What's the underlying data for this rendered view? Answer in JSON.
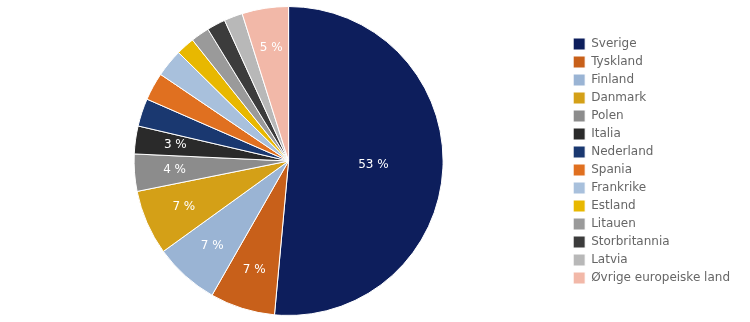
{
  "chart_data": {
    "type": "pie",
    "categories": [
      "Sverige",
      "Tyskland",
      "Finland",
      "Danmark",
      "Polen",
      "Italia",
      "Nederland",
      "Spania",
      "Frankrike",
      "Estland",
      "Litauen",
      "Storbritannia",
      "Latvia",
      "Øvrige europeiske land"
    ],
    "values": [
      53,
      7,
      7,
      7,
      4,
      3,
      3,
      3,
      3,
      2,
      2,
      2,
      2,
      5
    ],
    "value_labels": [
      "53 %",
      "7 %",
      "7 %",
      "7 %",
      "4 %",
      "3 %",
      null,
      null,
      null,
      null,
      null,
      null,
      null,
      "5 %"
    ],
    "data_labels": true,
    "colors": [
      "#0d1e5c",
      "#c8601a",
      "#9ab4d4",
      "#d4a017",
      "#8c8c8c",
      "#2a2a2a",
      "#1a3870",
      "#e07020",
      "#a8c0dc",
      "#e8b800",
      "#9a9a9a",
      "#3c3c3c",
      "#b8b8b8",
      "#f2b8a8"
    ],
    "legend": "right"
  }
}
